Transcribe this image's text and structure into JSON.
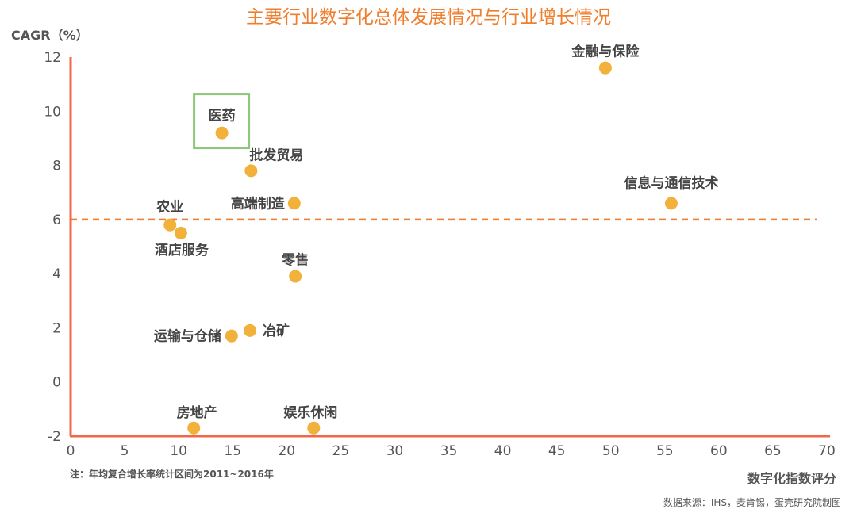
{
  "chart_data": {
    "type": "scatter",
    "title": "主要行业数字化总体发展情况与行业增长情况",
    "ylabel": "CAGR（%）",
    "xlabel": "数字化指数评分",
    "xlim": [
      0,
      70
    ],
    "ylim": [
      -2,
      12
    ],
    "xticks": [
      "0",
      "5",
      "10",
      "15",
      "20",
      "25",
      "30",
      "35",
      "40",
      "45",
      "50",
      "55",
      "60",
      "65",
      "70"
    ],
    "yticks": [
      "-2",
      "0",
      "2",
      "4",
      "6",
      "8",
      "10",
      "12"
    ],
    "reference_line": {
      "y": 6,
      "style": "dashed",
      "color": "#ef7e2e"
    },
    "points": [
      {
        "label": "金融与保险",
        "x": 49.5,
        "y": 11.6
      },
      {
        "label": "医药",
        "x": 14,
        "y": 9.2,
        "highlight": true
      },
      {
        "label": "批发贸易",
        "x": 16.7,
        "y": 7.8
      },
      {
        "label": "高端制造",
        "x": 20.7,
        "y": 6.6
      },
      {
        "label": "信息与通信技术",
        "x": 55.6,
        "y": 6.6
      },
      {
        "label": "农业",
        "x": 9.2,
        "y": 5.8
      },
      {
        "label": "酒店服务",
        "x": 10.2,
        "y": 5.5
      },
      {
        "label": "零售",
        "x": 20.8,
        "y": 3.9
      },
      {
        "label": "冶矿",
        "x": 16.6,
        "y": 1.9
      },
      {
        "label": "运输与仓储",
        "x": 14.9,
        "y": 1.7
      },
      {
        "label": "房地产",
        "x": 11.4,
        "y": -1.7
      },
      {
        "label": "娱乐休闲",
        "x": 22.5,
        "y": -1.7
      }
    ]
  },
  "note": "注：年均复合增长率统计区间为2011~2016年",
  "source": "数据来源：IHS，麦肯锡，蛋壳研究院制图",
  "colors": {
    "axis": "#f0674a",
    "title": "#ef7e2e",
    "point": "#f2b13a",
    "highlight_box": "#8cc77a",
    "dash": "#ef7e2e"
  }
}
